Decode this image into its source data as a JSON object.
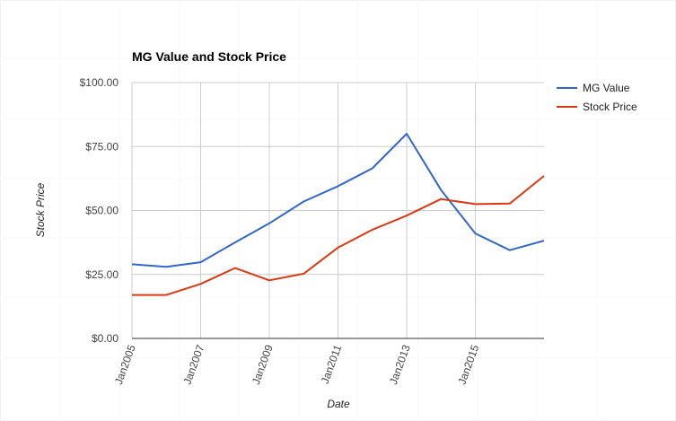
{
  "chart_data": {
    "type": "line",
    "title": "MG Value and Stock Price",
    "xlabel": "Date",
    "ylabel": "Stock Price",
    "ylim": [
      0,
      100
    ],
    "y_ticks": [
      {
        "value": 0,
        "label": "$0.00"
      },
      {
        "value": 25,
        "label": "$25.00"
      },
      {
        "value": 50,
        "label": "$50.00"
      },
      {
        "value": 75,
        "label": "$75.00"
      },
      {
        "value": 100,
        "label": "$100.00"
      }
    ],
    "x_ticks": [
      "Jan2005",
      "Jan2007",
      "Jan2009",
      "Jan2011",
      "Jan2013",
      "Jan2015"
    ],
    "x": [
      "2005-01",
      "2006-01",
      "2007-01",
      "2008-01",
      "2009-01",
      "2010-01",
      "2011-01",
      "2012-01",
      "2013-01",
      "2014-01",
      "2015-01",
      "2016-01",
      "2017-01"
    ],
    "grid": true,
    "legend_position": "right",
    "series": [
      {
        "name": "MG Value",
        "color": "#3366cc",
        "values": [
          29.0,
          28.0,
          29.8,
          37.5,
          45.0,
          53.5,
          59.5,
          66.5,
          80.0,
          58.0,
          41.0,
          34.5,
          38.2
        ]
      },
      {
        "name": "Stock Price",
        "color": "#dc3912",
        "values": [
          17.0,
          17.0,
          21.3,
          27.5,
          22.7,
          25.3,
          35.5,
          42.5,
          48.0,
          54.5,
          52.5,
          52.7,
          63.5
        ]
      }
    ]
  }
}
